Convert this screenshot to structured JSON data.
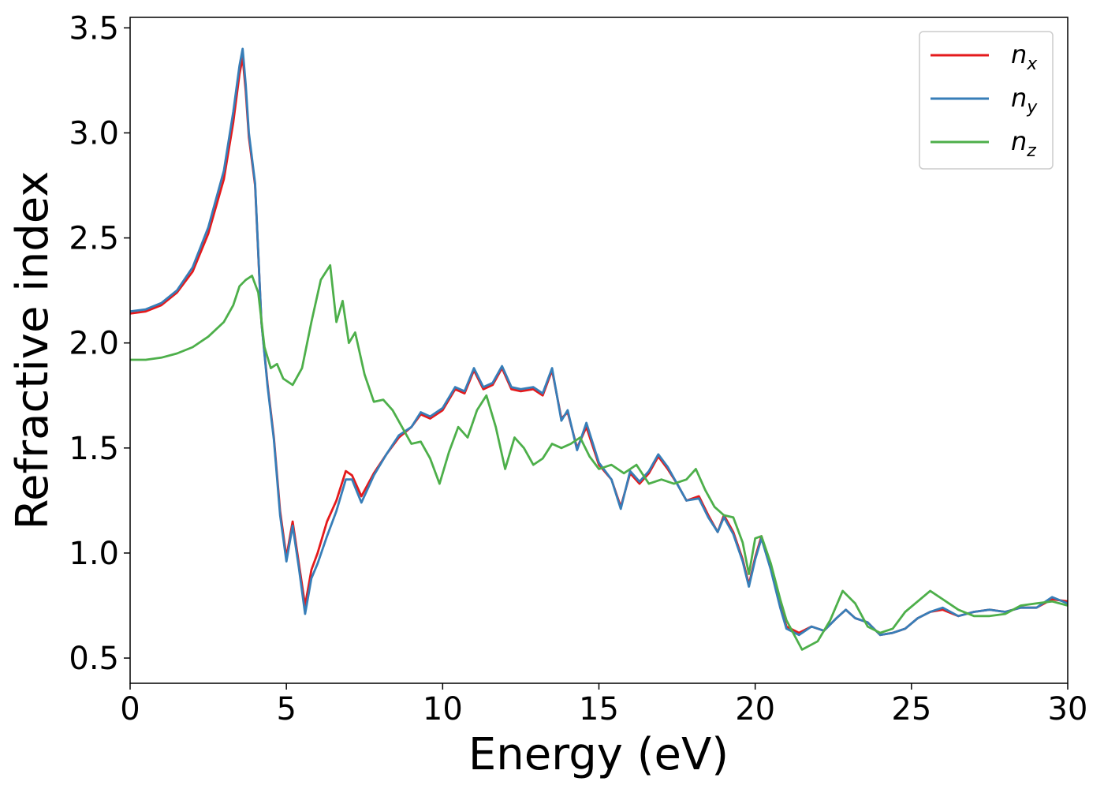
{
  "chart_data": {
    "type": "line",
    "xlabel": "Energy (eV)",
    "ylabel": "Refractive index",
    "xlim": [
      0,
      30
    ],
    "ylim": [
      0.38,
      3.55
    ],
    "xticks": [
      0,
      5,
      10,
      15,
      20,
      25,
      30
    ],
    "yticks": [
      0.5,
      1.0,
      1.5,
      2.0,
      2.5,
      3.0,
      3.5
    ],
    "xtick_labels": [
      "0",
      "5",
      "10",
      "15",
      "20",
      "25",
      "30"
    ],
    "ytick_labels": [
      "0.5",
      "1.0",
      "1.5",
      "2.0",
      "2.5",
      "3.0",
      "3.5"
    ],
    "grid": false,
    "legend_position": "top-right",
    "series": [
      {
        "name": "n_x",
        "label_main": "n",
        "label_sub": "x",
        "color": "#e41a1c",
        "x": [
          0,
          0.5,
          1.0,
          1.5,
          2.0,
          2.5,
          3.0,
          3.3,
          3.5,
          3.6,
          3.7,
          3.8,
          4.0,
          4.2,
          4.4,
          4.6,
          4.8,
          5.0,
          5.2,
          5.4,
          5.6,
          5.8,
          6.0,
          6.3,
          6.6,
          6.9,
          7.1,
          7.4,
          7.8,
          8.2,
          8.6,
          9.0,
          9.3,
          9.6,
          10.0,
          10.4,
          10.7,
          11.0,
          11.3,
          11.6,
          11.9,
          12.2,
          12.5,
          12.9,
          13.2,
          13.5,
          13.8,
          14.0,
          14.3,
          14.6,
          15.0,
          15.4,
          15.7,
          16.0,
          16.3,
          16.6,
          16.9,
          17.2,
          17.5,
          17.8,
          18.2,
          18.5,
          18.8,
          19.0,
          19.3,
          19.6,
          19.8,
          20.0,
          20.2,
          20.5,
          20.8,
          21.0,
          21.4,
          21.8,
          22.2,
          22.6,
          22.9,
          23.2,
          23.6,
          24.0,
          24.4,
          24.8,
          25.2,
          25.6,
          26.0,
          26.5,
          27.0,
          27.5,
          28.0,
          28.5,
          29.0,
          29.5,
          30.0
        ],
        "y": [
          2.14,
          2.15,
          2.18,
          2.24,
          2.34,
          2.52,
          2.78,
          3.05,
          3.28,
          3.36,
          3.2,
          2.98,
          2.75,
          2.1,
          1.8,
          1.55,
          1.2,
          0.98,
          1.15,
          0.95,
          0.75,
          0.92,
          1.0,
          1.15,
          1.25,
          1.39,
          1.37,
          1.27,
          1.38,
          1.47,
          1.55,
          1.6,
          1.66,
          1.64,
          1.68,
          1.78,
          1.76,
          1.87,
          1.78,
          1.8,
          1.88,
          1.78,
          1.77,
          1.78,
          1.75,
          1.87,
          1.64,
          1.67,
          1.5,
          1.6,
          1.42,
          1.35,
          1.22,
          1.38,
          1.33,
          1.38,
          1.46,
          1.4,
          1.33,
          1.25,
          1.27,
          1.18,
          1.1,
          1.18,
          1.1,
          0.97,
          0.85,
          0.98,
          1.08,
          0.93,
          0.75,
          0.65,
          0.62,
          0.65,
          0.63,
          0.69,
          0.73,
          0.69,
          0.67,
          0.61,
          0.62,
          0.64,
          0.69,
          0.72,
          0.73,
          0.7,
          0.72,
          0.73,
          0.72,
          0.74,
          0.74,
          0.78,
          0.77
        ]
      },
      {
        "name": "n_y",
        "label_main": "n",
        "label_sub": "y",
        "color": "#377eb8",
        "x": [
          0,
          0.5,
          1.0,
          1.5,
          2.0,
          2.5,
          3.0,
          3.3,
          3.5,
          3.6,
          3.7,
          3.8,
          4.0,
          4.2,
          4.4,
          4.6,
          4.8,
          5.0,
          5.2,
          5.4,
          5.6,
          5.8,
          6.0,
          6.3,
          6.6,
          6.9,
          7.1,
          7.4,
          7.8,
          8.2,
          8.6,
          9.0,
          9.3,
          9.6,
          10.0,
          10.4,
          10.7,
          11.0,
          11.3,
          11.6,
          11.9,
          12.2,
          12.5,
          12.9,
          13.2,
          13.5,
          13.8,
          14.0,
          14.3,
          14.6,
          15.0,
          15.4,
          15.7,
          16.0,
          16.3,
          16.6,
          16.9,
          17.2,
          17.5,
          17.8,
          18.2,
          18.5,
          18.8,
          19.0,
          19.3,
          19.6,
          19.8,
          20.0,
          20.2,
          20.5,
          20.8,
          21.0,
          21.4,
          21.8,
          22.2,
          22.6,
          22.9,
          23.2,
          23.6,
          24.0,
          24.4,
          24.8,
          25.2,
          25.6,
          26.0,
          26.5,
          27.0,
          27.5,
          28.0,
          28.5,
          29.0,
          29.5,
          30.0
        ],
        "y": [
          2.15,
          2.16,
          2.19,
          2.25,
          2.36,
          2.55,
          2.82,
          3.1,
          3.32,
          3.4,
          3.23,
          3.0,
          2.76,
          2.1,
          1.79,
          1.54,
          1.18,
          0.96,
          1.13,
          0.93,
          0.71,
          0.88,
          0.95,
          1.08,
          1.2,
          1.35,
          1.35,
          1.24,
          1.37,
          1.47,
          1.56,
          1.6,
          1.67,
          1.65,
          1.69,
          1.79,
          1.77,
          1.88,
          1.79,
          1.81,
          1.89,
          1.79,
          1.78,
          1.79,
          1.76,
          1.88,
          1.63,
          1.68,
          1.49,
          1.62,
          1.43,
          1.35,
          1.21,
          1.39,
          1.34,
          1.39,
          1.47,
          1.41,
          1.33,
          1.25,
          1.26,
          1.17,
          1.1,
          1.17,
          1.09,
          0.96,
          0.84,
          0.97,
          1.07,
          0.92,
          0.74,
          0.64,
          0.61,
          0.65,
          0.63,
          0.69,
          0.73,
          0.69,
          0.67,
          0.61,
          0.62,
          0.64,
          0.69,
          0.72,
          0.74,
          0.7,
          0.72,
          0.73,
          0.72,
          0.74,
          0.74,
          0.79,
          0.76
        ]
      },
      {
        "name": "n_z",
        "label_main": "n",
        "label_sub": "z",
        "color": "#4daf4a",
        "x": [
          0,
          0.5,
          1.0,
          1.5,
          2.0,
          2.5,
          3.0,
          3.3,
          3.5,
          3.7,
          3.9,
          4.1,
          4.3,
          4.5,
          4.7,
          4.9,
          5.2,
          5.5,
          5.8,
          6.1,
          6.4,
          6.6,
          6.8,
          7.0,
          7.2,
          7.5,
          7.8,
          8.1,
          8.4,
          8.7,
          9.0,
          9.3,
          9.6,
          9.9,
          10.2,
          10.5,
          10.8,
          11.1,
          11.4,
          11.7,
          12.0,
          12.3,
          12.6,
          12.9,
          13.2,
          13.5,
          13.8,
          14.1,
          14.4,
          14.7,
          15.0,
          15.4,
          15.8,
          16.2,
          16.6,
          17.0,
          17.4,
          17.8,
          18.1,
          18.4,
          18.7,
          19.0,
          19.3,
          19.6,
          19.8,
          20.0,
          20.2,
          20.5,
          20.8,
          21.0,
          21.5,
          22.0,
          22.4,
          22.8,
          23.2,
          23.6,
          24.0,
          24.4,
          24.8,
          25.2,
          25.6,
          26.0,
          26.5,
          27.0,
          27.5,
          28.0,
          28.5,
          29.0,
          29.5,
          30.0
        ],
        "y": [
          1.92,
          1.92,
          1.93,
          1.95,
          1.98,
          2.03,
          2.1,
          2.18,
          2.27,
          2.3,
          2.32,
          2.24,
          1.98,
          1.88,
          1.9,
          1.83,
          1.8,
          1.88,
          2.1,
          2.3,
          2.37,
          2.1,
          2.2,
          2.0,
          2.05,
          1.85,
          1.72,
          1.73,
          1.68,
          1.6,
          1.52,
          1.53,
          1.45,
          1.33,
          1.48,
          1.6,
          1.55,
          1.68,
          1.75,
          1.6,
          1.4,
          1.55,
          1.5,
          1.42,
          1.45,
          1.52,
          1.5,
          1.52,
          1.55,
          1.46,
          1.4,
          1.42,
          1.38,
          1.42,
          1.33,
          1.35,
          1.33,
          1.35,
          1.4,
          1.3,
          1.22,
          1.18,
          1.17,
          1.05,
          0.9,
          1.07,
          1.08,
          0.95,
          0.78,
          0.68,
          0.54,
          0.58,
          0.68,
          0.82,
          0.76,
          0.65,
          0.62,
          0.64,
          0.72,
          0.77,
          0.82,
          0.78,
          0.73,
          0.7,
          0.7,
          0.71,
          0.75,
          0.76,
          0.77,
          0.75
        ]
      }
    ]
  }
}
